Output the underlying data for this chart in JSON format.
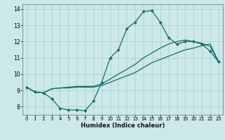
{
  "xlabel": "Humidex (Indice chaleur)",
  "xlim": [
    -0.5,
    23.5
  ],
  "ylim": [
    7.5,
    14.3
  ],
  "xticks": [
    0,
    1,
    2,
    3,
    4,
    5,
    6,
    7,
    8,
    9,
    10,
    11,
    12,
    13,
    14,
    15,
    16,
    17,
    18,
    19,
    20,
    21,
    22,
    23
  ],
  "yticks": [
    8,
    9,
    10,
    11,
    12,
    13,
    14
  ],
  "bg_color": "#cce8e8",
  "line_color": "#1a6b6b",
  "grid_color": "#aacccc",
  "line1_x": [
    0,
    1,
    2,
    3,
    4,
    5,
    6,
    7,
    8,
    9,
    10,
    11,
    12,
    13,
    14,
    15,
    16,
    17,
    18,
    19,
    20,
    21,
    22,
    23
  ],
  "line1_y": [
    9.2,
    8.9,
    8.85,
    8.5,
    7.9,
    7.8,
    7.8,
    7.75,
    8.35,
    9.5,
    11.0,
    11.5,
    12.8,
    13.2,
    13.85,
    13.9,
    13.2,
    12.25,
    11.85,
    12.0,
    12.0,
    11.85,
    11.4,
    10.75
  ],
  "line2_x": [
    0,
    1,
    2,
    3,
    4,
    5,
    6,
    7,
    8,
    9,
    10,
    11,
    12,
    13,
    14,
    15,
    16,
    17,
    18,
    19,
    20,
    21,
    22,
    23
  ],
  "line2_y": [
    9.2,
    8.9,
    8.85,
    9.1,
    9.15,
    9.15,
    9.2,
    9.2,
    9.2,
    9.3,
    9.5,
    9.7,
    9.9,
    10.1,
    10.4,
    10.7,
    10.9,
    11.1,
    11.3,
    11.5,
    11.6,
    11.75,
    11.85,
    10.75
  ],
  "line3_x": [
    0,
    1,
    2,
    3,
    4,
    5,
    6,
    7,
    8,
    9,
    10,
    11,
    12,
    13,
    14,
    15,
    16,
    17,
    18,
    19,
    20,
    21,
    22,
    23
  ],
  "line3_y": [
    9.2,
    8.9,
    8.85,
    9.1,
    9.15,
    9.2,
    9.25,
    9.25,
    9.25,
    9.4,
    9.7,
    10.0,
    10.3,
    10.6,
    11.0,
    11.3,
    11.6,
    11.85,
    12.0,
    12.1,
    12.0,
    11.9,
    11.7,
    10.75
  ]
}
